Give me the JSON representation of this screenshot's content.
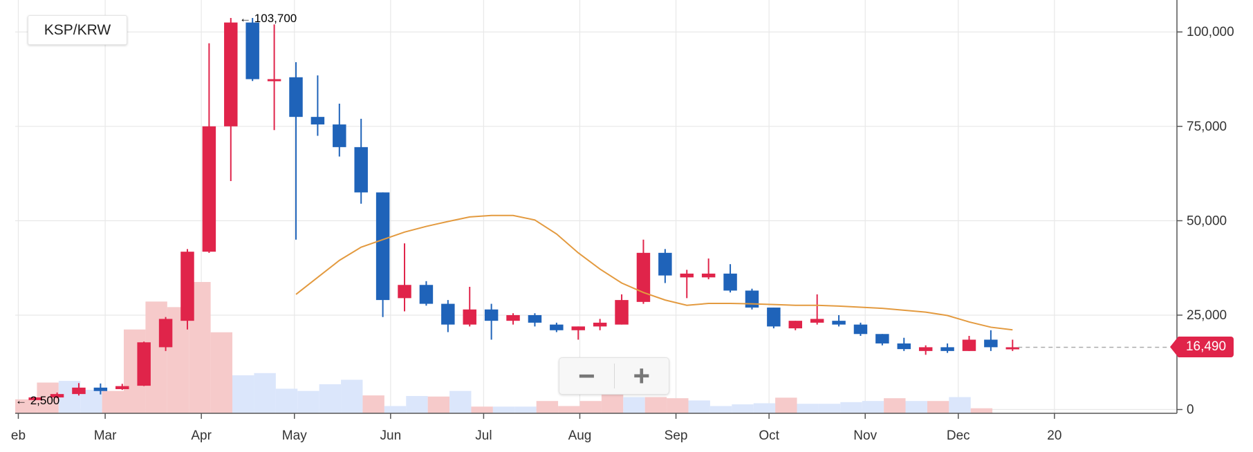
{
  "pair_label": "KSP/KRW",
  "zoom": {
    "minus_label": "−",
    "plus_label": "+"
  },
  "last_price_label": "16,490",
  "colors": {
    "up": "#e0244a",
    "down": "#1f63b9",
    "ma": "#e39a3f",
    "up_volume": "#f6caca",
    "down_volume": "#dbe6fb",
    "grid": "#e8e8e8"
  },
  "chart_data": {
    "type": "candlestick",
    "y_axis": {
      "ticks": [
        0,
        25000,
        50000,
        75000,
        100000
      ],
      "tick_labels": [
        "0",
        "25,000",
        "50,000",
        "75,000",
        "100,000"
      ],
      "position": "right",
      "ylim": [
        -1000,
        107000
      ]
    },
    "x_axis": {
      "tick_labels": [
        "eb",
        "Mar",
        "Apr",
        "May",
        "Jun",
        "Jul",
        "Aug",
        "Sep",
        "Oct",
        "Nov",
        "Dec",
        "20"
      ],
      "tick_days": [
        1,
        29,
        60,
        90,
        121,
        151,
        182,
        213,
        243,
        274,
        304,
        335
      ],
      "range_days": [
        0,
        325
      ]
    },
    "grid": true,
    "annotations": {
      "max_label": "← 103,700",
      "min_label": "← 2,500",
      "max_value": 103700,
      "min_value": 2500
    },
    "last_price": 16490,
    "candles": [
      {
        "d": 3,
        "o": 2500,
        "h": 3300,
        "l": 2500,
        "c": 3200
      },
      {
        "d": 10,
        "o": 3200,
        "h": 4500,
        "l": 3000,
        "c": 4100
      },
      {
        "d": 17,
        "o": 4100,
        "h": 7000,
        "l": 3700,
        "c": 5800
      },
      {
        "d": 24,
        "o": 5800,
        "h": 6900,
        "l": 4000,
        "c": 4900
      },
      {
        "d": 31,
        "o": 5400,
        "h": 6800,
        "l": 5200,
        "c": 6200
      },
      {
        "d": 38,
        "o": 6300,
        "h": 18000,
        "l": 6200,
        "c": 17800
      },
      {
        "d": 45,
        "o": 16500,
        "h": 24500,
        "l": 15500,
        "c": 24000
      },
      {
        "d": 52,
        "o": 23500,
        "h": 42500,
        "l": 21200,
        "c": 41800
      },
      {
        "d": 59,
        "o": 41800,
        "h": 97000,
        "l": 41500,
        "c": 75000
      },
      {
        "d": 66,
        "o": 75000,
        "h": 103700,
        "l": 60500,
        "c": 102500
      },
      {
        "d": 73,
        "o": 102500,
        "h": 103700,
        "l": 87000,
        "c": 87500
      },
      {
        "d": 80,
        "o": 87500,
        "h": 102000,
        "l": 74000,
        "c": 87500
      },
      {
        "d": 87,
        "o": 88000,
        "h": 92000,
        "l": 45000,
        "c": 77500
      },
      {
        "d": 94,
        "o": 77500,
        "h": 88500,
        "l": 72500,
        "c": 75500
      },
      {
        "d": 101,
        "o": 75500,
        "h": 81000,
        "l": 67000,
        "c": 69500
      },
      {
        "d": 108,
        "o": 69500,
        "h": 77000,
        "l": 54500,
        "c": 57500
      },
      {
        "d": 115,
        "o": 57500,
        "h": 57500,
        "l": 24500,
        "c": 29000
      },
      {
        "d": 122,
        "o": 29500,
        "h": 44000,
        "l": 26000,
        "c": 33000
      },
      {
        "d": 129,
        "o": 33000,
        "h": 34000,
        "l": 27500,
        "c": 28000
      },
      {
        "d": 136,
        "o": 28000,
        "h": 29000,
        "l": 20500,
        "c": 22500
      },
      {
        "d": 143,
        "o": 22500,
        "h": 32500,
        "l": 22000,
        "c": 26500
      },
      {
        "d": 150,
        "o": 26500,
        "h": 28000,
        "l": 18500,
        "c": 23500
      },
      {
        "d": 157,
        "o": 23500,
        "h": 25500,
        "l": 22500,
        "c": 25000
      },
      {
        "d": 164,
        "o": 25000,
        "h": 25500,
        "l": 22000,
        "c": 23000
      },
      {
        "d": 171,
        "o": 22500,
        "h": 23000,
        "l": 20500,
        "c": 21000
      },
      {
        "d": 178,
        "o": 21000,
        "h": 22000,
        "l": 18500,
        "c": 22000
      },
      {
        "d": 185,
        "o": 22000,
        "h": 24000,
        "l": 21000,
        "c": 23000
      },
      {
        "d": 192,
        "o": 22500,
        "h": 30500,
        "l": 22500,
        "c": 29000
      },
      {
        "d": 199,
        "o": 28500,
        "h": 45000,
        "l": 28000,
        "c": 41500
      },
      {
        "d": 206,
        "o": 41500,
        "h": 42500,
        "l": 33500,
        "c": 35500
      },
      {
        "d": 213,
        "o": 35000,
        "h": 37000,
        "l": 29500,
        "c": 36000
      },
      {
        "d": 220,
        "o": 35000,
        "h": 40000,
        "l": 34500,
        "c": 36000
      },
      {
        "d": 227,
        "o": 36000,
        "h": 38500,
        "l": 31000,
        "c": 31500
      },
      {
        "d": 234,
        "o": 31500,
        "h": 32000,
        "l": 26500,
        "c": 27000
      },
      {
        "d": 241,
        "o": 27000,
        "h": 27000,
        "l": 21500,
        "c": 22000
      },
      {
        "d": 248,
        "o": 21500,
        "h": 23500,
        "l": 21000,
        "c": 23500
      },
      {
        "d": 255,
        "o": 23000,
        "h": 30500,
        "l": 22500,
        "c": 24000
      },
      {
        "d": 262,
        "o": 23500,
        "h": 25000,
        "l": 22000,
        "c": 22500
      },
      {
        "d": 269,
        "o": 22500,
        "h": 23000,
        "l": 19500,
        "c": 20000
      },
      {
        "d": 276,
        "o": 20000,
        "h": 20000,
        "l": 17000,
        "c": 17500
      },
      {
        "d": 283,
        "o": 17500,
        "h": 19000,
        "l": 15500,
        "c": 16000
      },
      {
        "d": 290,
        "o": 15500,
        "h": 17000,
        "l": 14500,
        "c": 16500
      },
      {
        "d": 297,
        "o": 16500,
        "h": 17500,
        "l": 15000,
        "c": 15500
      },
      {
        "d": 304,
        "o": 15500,
        "h": 19500,
        "l": 15500,
        "c": 18500
      },
      {
        "d": 311,
        "o": 18500,
        "h": 21000,
        "l": 15500,
        "c": 16500
      },
      {
        "d": 318,
        "o": 16000,
        "h": 18500,
        "l": 15500,
        "c": 16490
      }
    ],
    "volume_scale_max": 107000,
    "volumes": [
      {
        "d": 0,
        "v": 2500,
        "up": true
      },
      {
        "d": 7,
        "v": 5500,
        "up": true
      },
      {
        "d": 14,
        "v": 5800,
        "up": false
      },
      {
        "d": 21,
        "v": 4200,
        "up": false
      },
      {
        "d": 28,
        "v": 4000,
        "up": true
      },
      {
        "d": 35,
        "v": 15000,
        "up": true
      },
      {
        "d": 42,
        "v": 20000,
        "up": true
      },
      {
        "d": 49,
        "v": 19000,
        "up": true
      },
      {
        "d": 56,
        "v": 23500,
        "up": true
      },
      {
        "d": 63,
        "v": 14500,
        "up": true
      },
      {
        "d": 70,
        "v": 6800,
        "up": false
      },
      {
        "d": 77,
        "v": 7200,
        "up": false
      },
      {
        "d": 84,
        "v": 4400,
        "up": false
      },
      {
        "d": 91,
        "v": 4000,
        "up": false
      },
      {
        "d": 98,
        "v": 5200,
        "up": false
      },
      {
        "d": 105,
        "v": 6000,
        "up": false
      },
      {
        "d": 112,
        "v": 3200,
        "up": true
      },
      {
        "d": 119,
        "v": 1300,
        "up": false
      },
      {
        "d": 126,
        "v": 3100,
        "up": false
      },
      {
        "d": 133,
        "v": 3000,
        "up": true
      },
      {
        "d": 140,
        "v": 4000,
        "up": false
      },
      {
        "d": 147,
        "v": 1200,
        "up": true
      },
      {
        "d": 154,
        "v": 1200,
        "up": false
      },
      {
        "d": 161,
        "v": 1200,
        "up": false
      },
      {
        "d": 168,
        "v": 2200,
        "up": true
      },
      {
        "d": 175,
        "v": 1300,
        "up": true
      },
      {
        "d": 182,
        "v": 2200,
        "up": true
      },
      {
        "d": 189,
        "v": 3700,
        "up": true
      },
      {
        "d": 196,
        "v": 2900,
        "up": false
      },
      {
        "d": 203,
        "v": 2900,
        "up": true
      },
      {
        "d": 210,
        "v": 2700,
        "up": true
      },
      {
        "d": 217,
        "v": 2300,
        "up": false
      },
      {
        "d": 224,
        "v": 1300,
        "up": false
      },
      {
        "d": 231,
        "v": 1600,
        "up": false
      },
      {
        "d": 238,
        "v": 1800,
        "up": false
      },
      {
        "d": 245,
        "v": 2800,
        "up": true
      },
      {
        "d": 252,
        "v": 1700,
        "up": false
      },
      {
        "d": 259,
        "v": 1700,
        "up": false
      },
      {
        "d": 266,
        "v": 2000,
        "up": false
      },
      {
        "d": 273,
        "v": 2200,
        "up": false
      },
      {
        "d": 280,
        "v": 2700,
        "up": true
      },
      {
        "d": 287,
        "v": 2200,
        "up": false
      },
      {
        "d": 294,
        "v": 2200,
        "up": true
      },
      {
        "d": 301,
        "v": 2900,
        "up": false
      },
      {
        "d": 308,
        "v": 900,
        "up": true
      }
    ],
    "moving_average": [
      {
        "d": 87,
        "v": 30500
      },
      {
        "d": 94,
        "v": 35000
      },
      {
        "d": 101,
        "v": 39500
      },
      {
        "d": 108,
        "v": 43000
      },
      {
        "d": 115,
        "v": 45000
      },
      {
        "d": 122,
        "v": 47000
      },
      {
        "d": 129,
        "v": 48500
      },
      {
        "d": 136,
        "v": 49800
      },
      {
        "d": 143,
        "v": 51000
      },
      {
        "d": 150,
        "v": 51400
      },
      {
        "d": 157,
        "v": 51400
      },
      {
        "d": 164,
        "v": 50200
      },
      {
        "d": 171,
        "v": 46500
      },
      {
        "d": 178,
        "v": 41500
      },
      {
        "d": 185,
        "v": 37200
      },
      {
        "d": 192,
        "v": 33500
      },
      {
        "d": 199,
        "v": 31000
      },
      {
        "d": 206,
        "v": 29000
      },
      {
        "d": 213,
        "v": 27600
      },
      {
        "d": 220,
        "v": 28100
      },
      {
        "d": 227,
        "v": 28100
      },
      {
        "d": 234,
        "v": 28000
      },
      {
        "d": 241,
        "v": 27800
      },
      {
        "d": 248,
        "v": 27600
      },
      {
        "d": 255,
        "v": 27600
      },
      {
        "d": 262,
        "v": 27400
      },
      {
        "d": 269,
        "v": 27100
      },
      {
        "d": 276,
        "v": 26800
      },
      {
        "d": 283,
        "v": 26300
      },
      {
        "d": 290,
        "v": 25800
      },
      {
        "d": 297,
        "v": 24900
      },
      {
        "d": 304,
        "v": 23200
      },
      {
        "d": 311,
        "v": 21800
      },
      {
        "d": 318,
        "v": 21100
      }
    ]
  }
}
